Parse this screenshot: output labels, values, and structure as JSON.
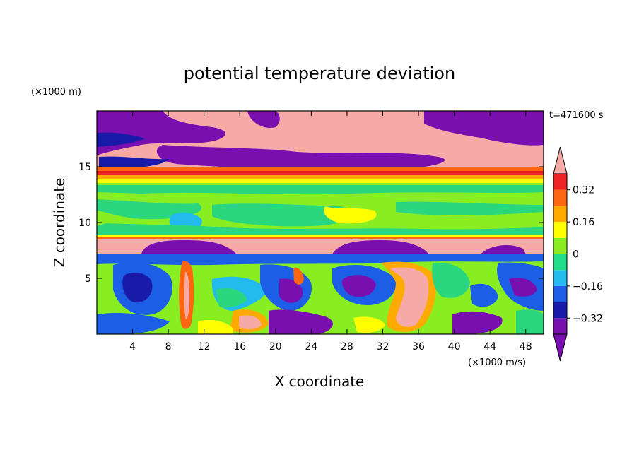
{
  "chart_data": {
    "type": "heatmap",
    "title": "potential temperature deviation",
    "xlabel": "X coordinate",
    "ylabel": "Z coordinate",
    "x_unit_label": "(×1000 m/s)",
    "y_unit_label": "(×1000 m)",
    "time_label": "t=471600 s",
    "xlim": [
      0,
      50
    ],
    "ylim": [
      0,
      20
    ],
    "x_ticks": [
      4,
      8,
      12,
      16,
      20,
      24,
      28,
      32,
      36,
      40,
      44,
      48
    ],
    "x_tick_labels": [
      "4",
      "8",
      "12",
      "16",
      "20",
      "24",
      "28",
      "32",
      "36",
      "40",
      "44",
      "48"
    ],
    "y_ticks": [
      5,
      10,
      15
    ],
    "y_tick_labels": [
      "5",
      "10",
      "15"
    ],
    "colorbar": {
      "levels": [
        -0.4,
        -0.32,
        -0.24,
        -0.16,
        -0.08,
        0,
        0.08,
        0.16,
        0.24,
        0.32,
        0.4
      ],
      "labels": [
        {
          "value": 0.32,
          "text": "0.32"
        },
        {
          "value": 0.16,
          "text": "0.16"
        },
        {
          "value": 0,
          "text": "0"
        },
        {
          "value": -0.16,
          "text": "−0.16"
        },
        {
          "value": -0.32,
          "text": "−0.32"
        }
      ],
      "colors": [
        "#7a0fb0",
        "#1a1aa8",
        "#1c5ee6",
        "#22bbee",
        "#22dd88",
        "#88ee22",
        "#ffff00",
        "#ffaa00",
        "#ff6611",
        "#ee2222"
      ],
      "under_color": "#7a0fb0",
      "over_color": "#f6aaa8"
    }
  }
}
